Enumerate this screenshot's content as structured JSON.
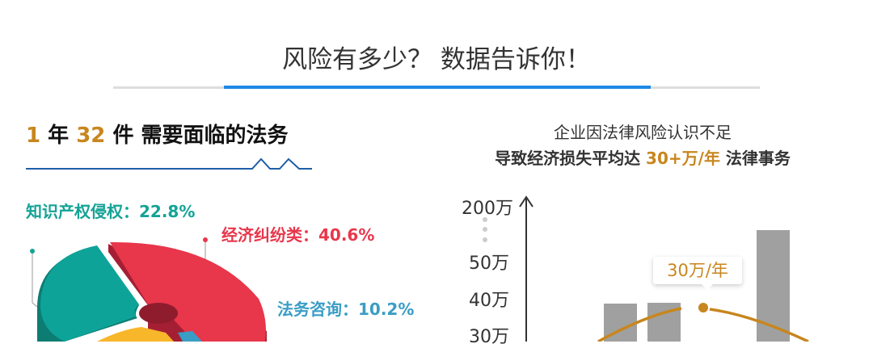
{
  "header": {
    "title": "风险有多少？ 数据告诉你！",
    "accent_color": "#1e88e5"
  },
  "left": {
    "heading": {
      "num1": "1",
      "unit1": " 年 ",
      "num2": "32",
      "rest": " 件 需要面临的法务"
    },
    "labels": [
      {
        "text": "知识产权侵权：22.8%",
        "color": "#14a396"
      },
      {
        "text": "经济纠纷类：40.6%",
        "color": "#e8374c"
      },
      {
        "text": "法务咨询：10.2%",
        "color": "#3a9dc5"
      }
    ]
  },
  "right": {
    "subtitle1": "企业因法律风险认识不足",
    "subtitle2_pre": "导致经济损失平均达 ",
    "subtitle2_highlight": "30+万/年",
    "subtitle2_post": " 法律事务",
    "y_ticks": [
      "200万",
      "50万",
      "40万",
      "30万"
    ],
    "tooltip": "30万/年",
    "highlight_color": "#c8861e"
  },
  "chart_data": {
    "type": "pie",
    "slices": [
      {
        "label": "知识产权侵权",
        "value": 22.8
      },
      {
        "label": "经济纠纷类",
        "value": 40.6
      },
      {
        "label": "法务咨询",
        "value": 10.2
      }
    ]
  }
}
